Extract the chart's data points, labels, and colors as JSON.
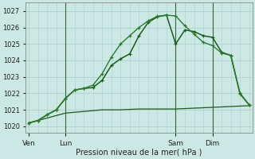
{
  "bg_color": "#cce8e4",
  "grid_color": "#aad4cc",
  "line_color_dark": "#1a5c1a",
  "line_color_mid": "#2d7a2d",
  "xlabel": "Pression niveau de la mer( hPa )",
  "xtick_labels": [
    "Ven",
    "Lun",
    "Sam",
    "Dim"
  ],
  "xtick_positions": [
    0,
    12,
    48,
    60
  ],
  "yticks": [
    1020,
    1021,
    1022,
    1023,
    1024,
    1025,
    1026,
    1027
  ],
  "ylim": [
    1019.6,
    1027.5
  ],
  "xlim": [
    -1,
    73
  ],
  "series1": {
    "x": [
      0,
      3,
      6,
      9,
      12,
      15,
      18,
      21,
      24,
      27,
      30,
      33,
      36,
      39,
      42,
      45,
      48,
      51,
      54,
      57,
      60,
      63,
      66,
      69,
      72
    ],
    "y": [
      1020.2,
      1020.35,
      1020.7,
      1021.0,
      1021.7,
      1022.2,
      1022.3,
      1022.35,
      1022.8,
      1023.7,
      1024.1,
      1024.4,
      1025.5,
      1026.3,
      1026.65,
      1026.75,
      1025.0,
      1025.85,
      1025.75,
      1025.5,
      1025.4,
      1024.5,
      1024.3,
      1022.0,
      1021.3
    ]
  },
  "series2": {
    "x": [
      0,
      3,
      6,
      9,
      12,
      15,
      18,
      21,
      24,
      27,
      30,
      33,
      36,
      39,
      42,
      45,
      48,
      51,
      54,
      57,
      60,
      63,
      66,
      69,
      72
    ],
    "y": [
      1020.2,
      1020.35,
      1020.7,
      1021.0,
      1021.7,
      1022.2,
      1022.3,
      1022.5,
      1023.2,
      1024.2,
      1025.0,
      1025.5,
      1026.0,
      1026.4,
      1026.68,
      1026.75,
      1026.7,
      1026.1,
      1025.6,
      1025.1,
      1024.9,
      1024.45,
      1024.3,
      1021.95,
      1021.3
    ]
  },
  "series3": {
    "x": [
      0,
      6,
      12,
      18,
      24,
      30,
      36,
      42,
      48,
      54,
      60,
      66,
      72
    ],
    "y": [
      1020.2,
      1020.5,
      1020.8,
      1020.9,
      1021.0,
      1021.0,
      1021.05,
      1021.05,
      1021.05,
      1021.1,
      1021.15,
      1021.2,
      1021.25
    ]
  },
  "vlines": [
    12,
    48,
    60
  ]
}
